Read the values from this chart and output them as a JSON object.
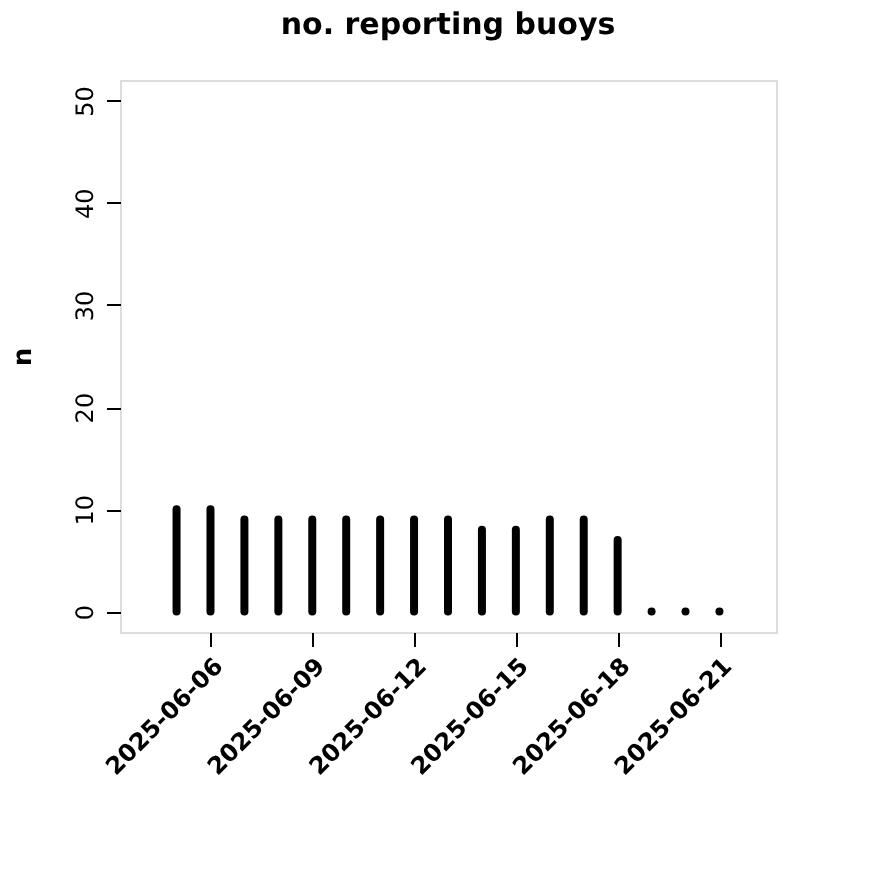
{
  "chart_data": {
    "type": "bar",
    "title": "no. reporting buoys",
    "ylabel": "n",
    "x": [
      "2025-06-05",
      "2025-06-06",
      "2025-06-07",
      "2025-06-08",
      "2025-06-09",
      "2025-06-10",
      "2025-06-11",
      "2025-06-12",
      "2025-06-13",
      "2025-06-14",
      "2025-06-15",
      "2025-06-16",
      "2025-06-17",
      "2025-06-18",
      "2025-06-19",
      "2025-06-20",
      "2025-06-21"
    ],
    "values": [
      10,
      10,
      9,
      9,
      9,
      9,
      9,
      9,
      9,
      8,
      8,
      9,
      9,
      7,
      0,
      0,
      0
    ],
    "color": "#000000",
    "xlim": [
      "2025-06-03T08:00",
      "2025-06-22T16:00"
    ],
    "xticks": [
      "2025-06-06",
      "2025-06-09",
      "2025-06-12",
      "2025-06-15",
      "2025-06-18",
      "2025-06-21"
    ],
    "ylim": [
      -2,
      52
    ],
    "yticks": [
      0,
      10,
      20,
      30,
      40,
      50
    ],
    "grid": false
  }
}
